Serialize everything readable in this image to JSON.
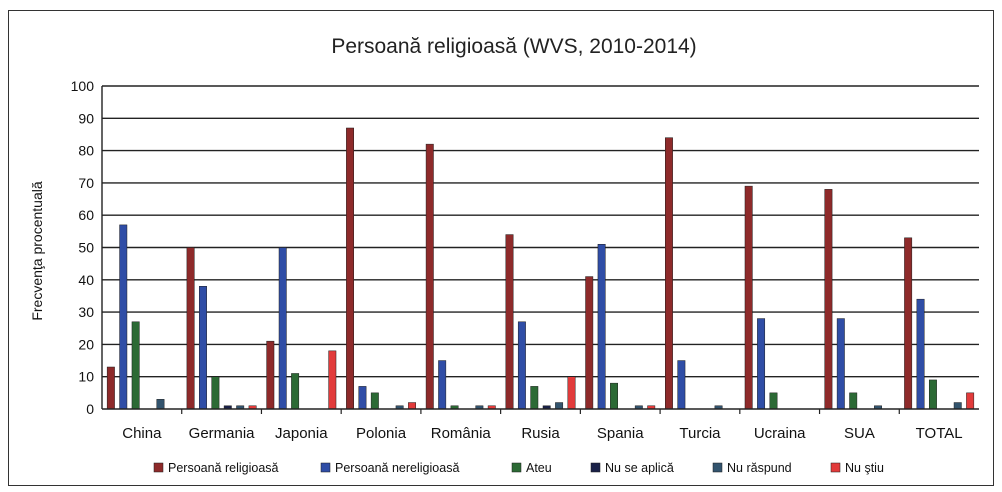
{
  "chart_data": {
    "type": "bar",
    "title": "Persoană religioasă (WVS, 2010-2014)",
    "ylabel": "Frecvenţa procentuală",
    "xlabel": "",
    "ylim": [
      0,
      100
    ],
    "yticks": [
      0,
      10,
      20,
      30,
      40,
      50,
      60,
      70,
      80,
      90,
      100
    ],
    "grid": true,
    "legend_position": "bottom",
    "categories": [
      "China",
      "Germania",
      "Japonia",
      "Polonia",
      "România",
      "Rusia",
      "Spania",
      "Turcia",
      "Ucraina",
      "SUA",
      "TOTAL"
    ],
    "series": [
      {
        "name": "Persoană religioasă",
        "color": "#8e2a2a",
        "values": [
          13,
          50,
          21,
          87,
          82,
          54,
          41,
          84,
          69,
          68,
          53
        ]
      },
      {
        "name": "Persoană nereligioasă",
        "color": "#2f4da6",
        "values": [
          57,
          38,
          50,
          7,
          15,
          27,
          51,
          15,
          28,
          28,
          34
        ]
      },
      {
        "name": "Ateu",
        "color": "#2c6a35",
        "values": [
          27,
          10,
          11,
          5,
          1,
          7,
          8,
          0,
          5,
          5,
          9
        ]
      },
      {
        "name": "Nu se aplică",
        "color": "#1a2148",
        "values": [
          0,
          1,
          0,
          0,
          0,
          1,
          0,
          0,
          0,
          0,
          0
        ]
      },
      {
        "name": "Nu răspund",
        "color": "#33546e",
        "values": [
          3,
          1,
          0,
          1,
          1,
          2,
          1,
          1,
          0,
          1,
          2
        ]
      },
      {
        "name": "Nu ştiu",
        "color": "#e23b3b",
        "values": [
          0,
          1,
          18,
          2,
          1,
          10,
          1,
          0,
          0,
          0,
          5
        ]
      }
    ]
  }
}
